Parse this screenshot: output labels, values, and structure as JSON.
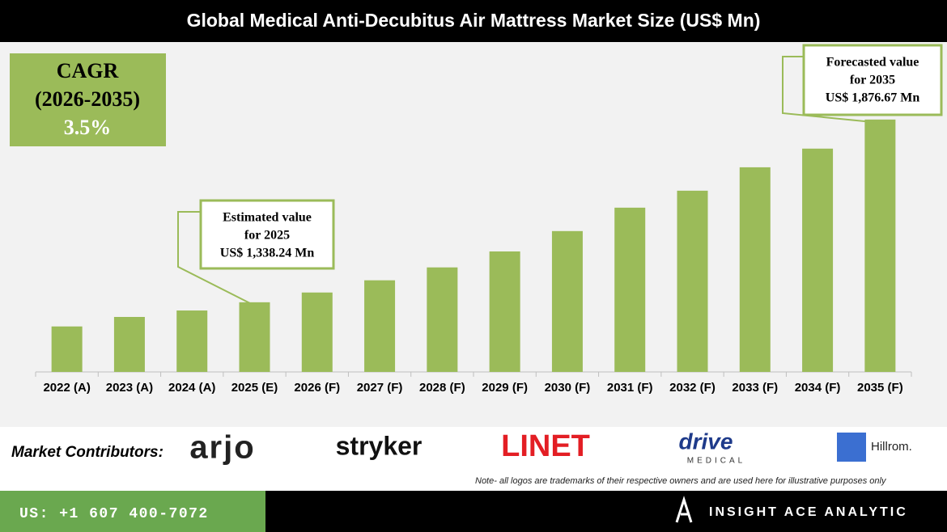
{
  "chart_data": {
    "type": "bar",
    "title": "Global Medical Anti-Decubitus Air Mattress Market Size (US$ Mn)",
    "categories": [
      "2022 (A)",
      "2023 (A)",
      "2024 (A)",
      "2025 (E)",
      "2026 (F)",
      "2027 (F)",
      "2028 (F)",
      "2029 (F)",
      "2030 (F)",
      "2031 (F)",
      "2032 (F)",
      "2033 (F)",
      "2034 (F)",
      "2035 (F)"
    ],
    "values": [
      1267,
      1295,
      1314,
      1338.24,
      1367,
      1403,
      1441,
      1488,
      1548,
      1617,
      1667,
      1736,
      1791,
      1876.67
    ],
    "value_labels": [
      null,
      null,
      null,
      "US$ 1,338.24 Mn",
      null,
      null,
      null,
      null,
      null,
      null,
      null,
      null,
      null,
      "US$ 1,876.67 Mn"
    ],
    "annotations": [
      {
        "index": 3,
        "lines": [
          "Estimated value",
          "for 2025"
        ]
      },
      {
        "index": 13,
        "lines": [
          "Forecasted value",
          "for 2035"
        ]
      }
    ],
    "color": "#9bbb59",
    "ylim": [
      1133,
      2086
    ],
    "cagr": {
      "label": "CAGR",
      "period": "(2026-2035)",
      "value": "3.5%"
    }
  },
  "contributors": {
    "label": "Market Contributors:",
    "logos": [
      "arjo",
      "stryker",
      "LINET",
      "drive",
      "MEDICAL",
      "Hillrom."
    ],
    "note": "Note- all logos are trademarks of their respective owners and are used here for illustrative purposes only"
  },
  "footer": {
    "phone": "US: +1 607 400-7072",
    "brand": "INSIGHT ACE ANALYTIC"
  }
}
